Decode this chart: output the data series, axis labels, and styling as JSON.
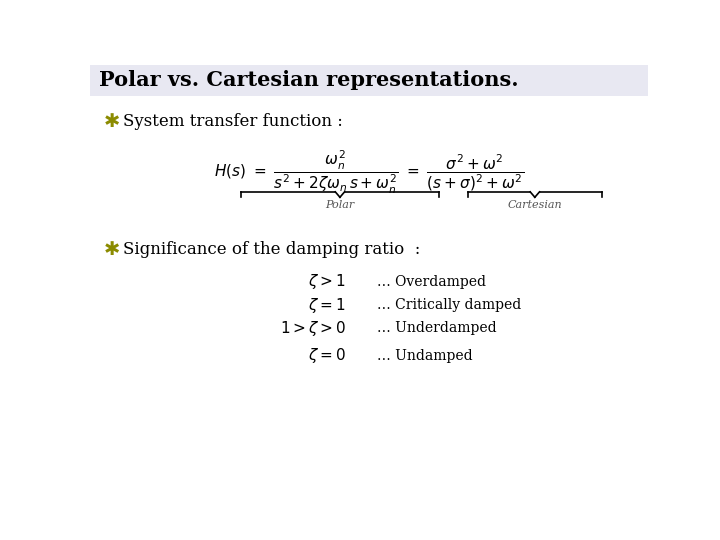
{
  "title": "Polar vs. Cartesian representations.",
  "title_bg": "#e8e8f2",
  "title_fontsize": 15,
  "background_color": "#ffffff",
  "bullet_color": "#8B8B00",
  "bullet1_text": "System transfer function :",
  "bullet2_text": "Significance of the damping ratio  :",
  "polar_label": "Polar",
  "cartesian_label": "Cartesian",
  "formula_fontsize": 11,
  "bullet_fontsize": 12,
  "damping_lines": [
    {
      "formula": "$\\zeta > 1$",
      "desc": "\\ldots\\ Overdamped"
    },
    {
      "formula": "$\\zeta = 1$",
      "desc": "\\ldots\\ Critically damped"
    },
    {
      "formula": "$1 > \\zeta > 0$",
      "desc": "\\ldots\\ Underdamped"
    },
    {
      "formula": "$\\zeta = 0$",
      "desc": "\\ldots\\ Undamped"
    }
  ]
}
